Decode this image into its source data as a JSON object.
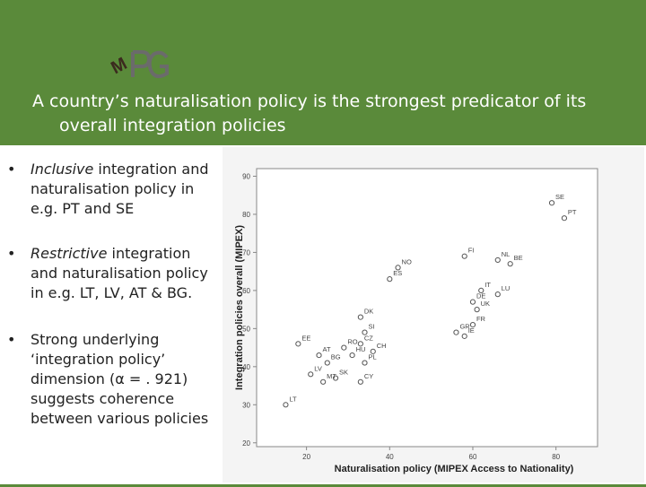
{
  "header": {
    "title_line1": "A country’s naturalisation policy is the strongest predicator of its",
    "title_line2": "overall integration policies",
    "logo_text": "MPG"
  },
  "bullets": [
    {
      "marker": "•",
      "emph": "Inclusive",
      "text": " integration and naturalisation policy in e.g. PT and SE"
    },
    {
      "marker": "•",
      "emph": "Restrictive",
      "text": " integration and naturalisation policy in e.g. LT, LV, AT & BG."
    },
    {
      "marker": "•",
      "emph": "",
      "text": "Strong underlying ‘integration policy’ dimension (α = . 921) suggests coherence between various policies"
    }
  ],
  "chart_data": {
    "type": "scatter",
    "xlabel": "Naturalisation policy (MIPEX Access to Nationality)",
    "ylabel": "Integration policies overall (MIPEX)",
    "xlim": [
      8,
      90
    ],
    "ylim": [
      19,
      92
    ],
    "xticks": [
      20,
      40,
      60,
      80
    ],
    "yticks": [
      20,
      30,
      40,
      50,
      60,
      70,
      80,
      90
    ],
    "tick_labels_x": [
      "20",
      "40",
      "60",
      "80"
    ],
    "tick_labels_y": [
      "20",
      "30",
      "40",
      "50",
      "60",
      "70",
      "80",
      "90"
    ],
    "points": [
      {
        "label": "SE",
        "x": 79,
        "y": 83
      },
      {
        "label": "PT",
        "x": 82,
        "y": 79
      },
      {
        "label": "FI",
        "x": 58,
        "y": 69
      },
      {
        "label": "NL",
        "x": 66,
        "y": 68
      },
      {
        "label": "BE",
        "x": 69,
        "y": 67
      },
      {
        "label": "NO",
        "x": 42,
        "y": 66
      },
      {
        "label": "ES",
        "x": 40,
        "y": 63
      },
      {
        "label": "IT",
        "x": 62,
        "y": 60
      },
      {
        "label": "LU",
        "x": 66,
        "y": 59
      },
      {
        "label": "DE",
        "x": 60,
        "y": 57
      },
      {
        "label": "UK",
        "x": 61,
        "y": 55
      },
      {
        "label": "FR",
        "x": 60,
        "y": 51
      },
      {
        "label": "DK",
        "x": 33,
        "y": 53
      },
      {
        "label": "GR",
        "x": 56,
        "y": 49
      },
      {
        "label": "IE",
        "x": 58,
        "y": 48
      },
      {
        "label": "SI",
        "x": 34,
        "y": 49
      },
      {
        "label": "EE",
        "x": 18,
        "y": 46
      },
      {
        "label": "RO",
        "x": 29,
        "y": 45
      },
      {
        "label": "CZ",
        "x": 33,
        "y": 46
      },
      {
        "label": "HU",
        "x": 31,
        "y": 43
      },
      {
        "label": "CH",
        "x": 36,
        "y": 44
      },
      {
        "label": "AT",
        "x": 23,
        "y": 43
      },
      {
        "label": "BG",
        "x": 25,
        "y": 41
      },
      {
        "label": "PL",
        "x": 34,
        "y": 41
      },
      {
        "label": "LV",
        "x": 21,
        "y": 38
      },
      {
        "label": "MT",
        "x": 24,
        "y": 36
      },
      {
        "label": "SK",
        "x": 27,
        "y": 37
      },
      {
        "label": "CY",
        "x": 33,
        "y": 36
      },
      {
        "label": "LT",
        "x": 15,
        "y": 30
      }
    ]
  }
}
